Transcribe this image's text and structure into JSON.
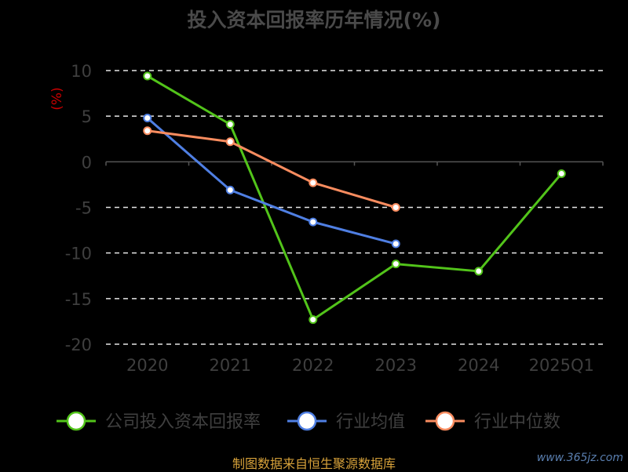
{
  "chart_data": {
    "type": "line",
    "title": "投入资本回报率历年情况(%)",
    "ylabel": "(%)",
    "categories": [
      "2020",
      "2021",
      "2022",
      "2023",
      "2024",
      "2025Q1"
    ],
    "ylim": [
      -20,
      10
    ],
    "yticks": [
      10,
      5,
      0,
      -5,
      -10,
      -15,
      -20
    ],
    "grid": true,
    "legend_position": "bottom",
    "series": [
      {
        "name": "公司投入资本回报率",
        "color": "#52c41a",
        "values": [
          9.4,
          4.1,
          -17.3,
          -11.2,
          -12.0,
          -1.3
        ]
      },
      {
        "name": "行业均值",
        "color": "#4f7fe3",
        "values": [
          4.8,
          -3.1,
          -6.6,
          -9.0,
          null,
          null
        ]
      },
      {
        "name": "行业中位数",
        "color": "#f98c5f",
        "values": [
          3.4,
          2.2,
          -2.3,
          -5.0,
          null,
          null
        ]
      }
    ]
  },
  "footer": "制图数据来自恒生聚源数据库",
  "watermark": "www.365jz.com"
}
